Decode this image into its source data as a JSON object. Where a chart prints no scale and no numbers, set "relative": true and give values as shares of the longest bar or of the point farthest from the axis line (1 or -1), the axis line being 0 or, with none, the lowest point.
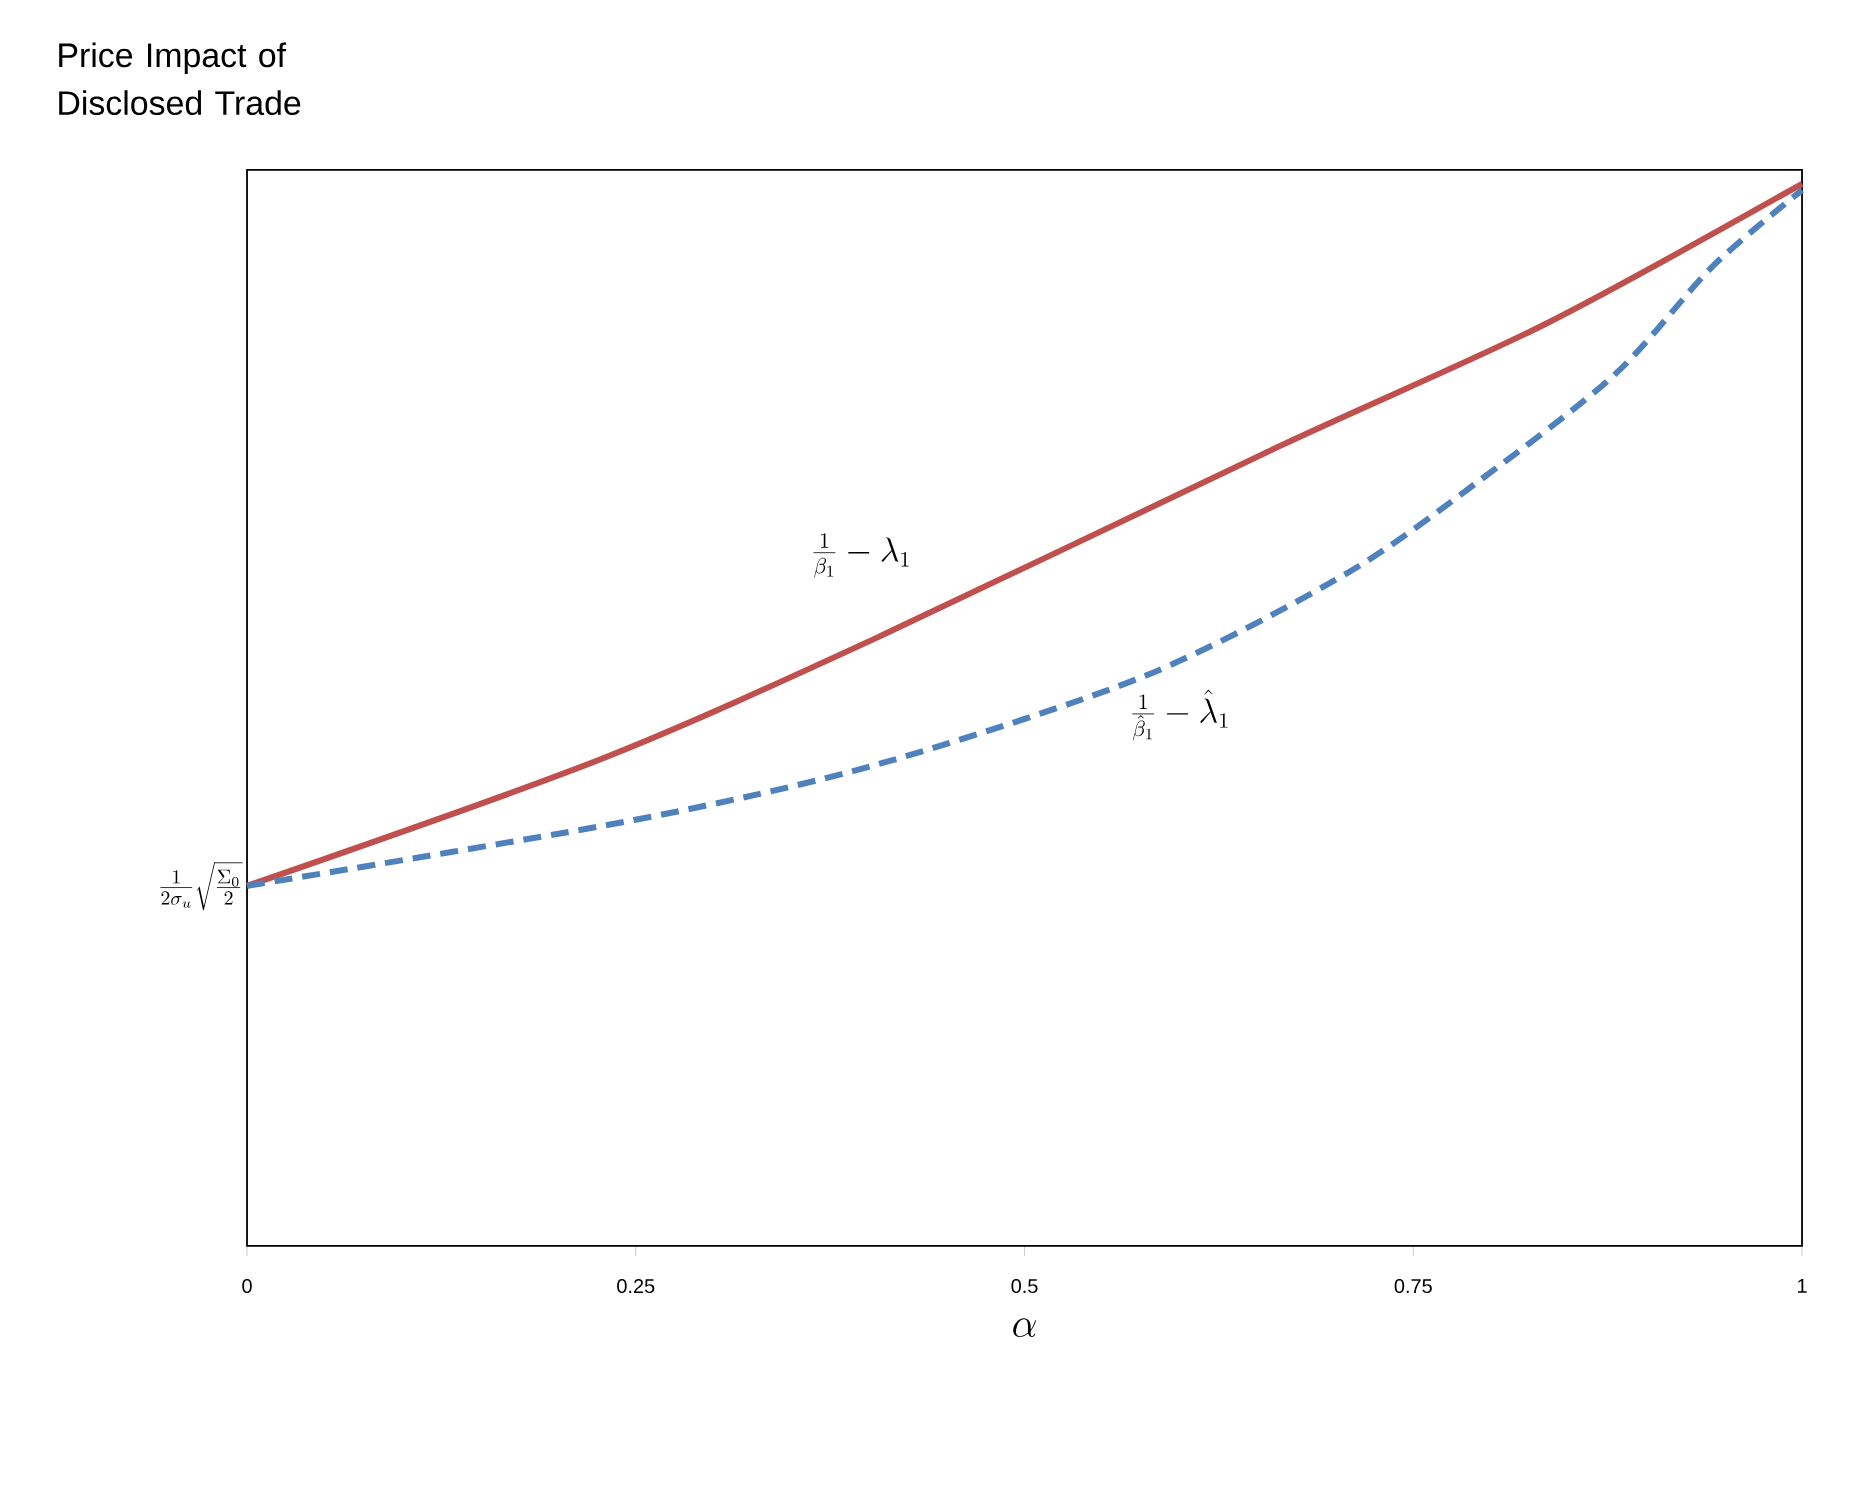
{
  "chart_data": {
    "type": "line",
    "title": "Price Impact of Disclosed Trade",
    "xlabel": "\\alpha",
    "relative": true,
    "xlim": [
      0,
      1
    ],
    "xticks": [
      0,
      0.25,
      0.5,
      0.75,
      1
    ],
    "series": [
      {
        "name": "\\frac{1}{\\beta_1}-\\lambda_1",
        "color": "#c0504d",
        "line_style": "solid",
        "x": [
          0,
          0.227,
          0.407,
          0.664,
          0.835,
          1
        ],
        "values": [
          0.339,
          0.458,
          0.574,
          0.753,
          0.868,
          1
        ]
      },
      {
        "name": "\\frac{1}{\\hat{\\beta}_1}-\\hat{\\lambda}_1",
        "color": "#4f81bd",
        "line_style": "dashed",
        "x": [
          0,
          0.249,
          0.407,
          0.578,
          0.707,
          0.793,
          0.88,
          0.943,
          1
        ],
        "values": [
          0.339,
          0.401,
          0.454,
          0.537,
          0.633,
          0.721,
          0.821,
          0.923,
          0.994
        ]
      }
    ],
    "annotations": [
      {
        "text": "\\frac{1}{2\\sigma_u}\\sqrt{\\frac{\\Sigma_0}{2}}",
        "x": 0,
        "y": 0.339
      }
    ]
  }
}
